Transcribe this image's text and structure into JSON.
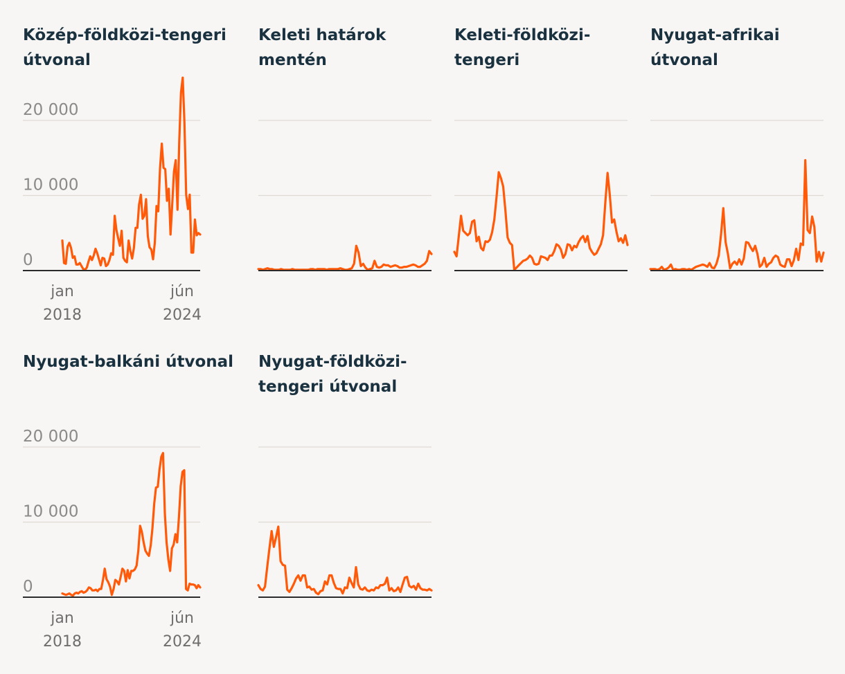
{
  "chart_data": [
    {
      "type": "line",
      "title": "Közép-földközi-tengeri útvonal",
      "title_lines": [
        "Közép-földközi-tengeri",
        "útvonal"
      ],
      "yticks": [
        {
          "value": 0,
          "label": "0"
        },
        {
          "value": 10000,
          "label": "10 000"
        },
        {
          "value": 20000,
          "label": "20 000"
        }
      ],
      "xticks": [
        {
          "label": [
            "jan",
            "2018"
          ],
          "pos": "start"
        },
        {
          "label": [
            "jún",
            "2024"
          ],
          "pos": "end"
        }
      ],
      "ylim": [
        0,
        20000
      ],
      "color": "#ff5a0a",
      "x_start": 0.2,
      "values": [
        4000,
        1000,
        900,
        3200,
        3700,
        3000,
        1700,
        1900,
        800,
        800,
        1000,
        600,
        200,
        100,
        400,
        1200,
        1900,
        1400,
        2000,
        2900,
        2300,
        1500,
        700,
        1700,
        1600,
        600,
        800,
        1400,
        2300,
        2100,
        7300,
        5400,
        4300,
        3300,
        5300,
        1700,
        1300,
        1100,
        4000,
        2600,
        1600,
        3000,
        5700,
        5700,
        8800,
        10100,
        6900,
        7300,
        9500,
        4600,
        3100,
        2800,
        1500,
        3700,
        8600,
        7900,
        13700,
        16900,
        13700,
        13500,
        9300,
        10900,
        4800,
        8900,
        13200,
        14700,
        8100,
        17200,
        23700,
        25700,
        19700,
        10100,
        8200,
        10100,
        2400,
        2400,
        6800,
        4700,
        5000,
        4800
      ]
    },
    {
      "type": "line",
      "title": "Keleti határok mentén",
      "title_lines": [
        "Keleti határok",
        "mentén"
      ],
      "yticks": [],
      "xticks": [],
      "ylim": [
        0,
        20000
      ],
      "color": "#ff5a0a",
      "x_start": 0.0,
      "values": [
        200,
        200,
        100,
        200,
        300,
        200,
        200,
        100,
        100,
        100,
        200,
        100,
        100,
        100,
        100,
        200,
        100,
        100,
        100,
        100,
        100,
        100,
        100,
        200,
        200,
        100,
        200,
        200,
        200,
        200,
        100,
        200,
        200,
        200,
        200,
        200,
        300,
        200,
        100,
        100,
        200,
        300,
        900,
        3300,
        2400,
        600,
        900,
        400,
        100,
        200,
        300,
        1300,
        500,
        400,
        500,
        800,
        700,
        700,
        500,
        600,
        700,
        600,
        400,
        400,
        500,
        500,
        600,
        700,
        800,
        700,
        500,
        500,
        700,
        900,
        1300,
        2600,
        2200
      ]
    },
    {
      "type": "line",
      "title": "Keleti-földközi-tengeri",
      "title_lines": [
        "Keleti-földközi-",
        "tengeri"
      ],
      "yticks": [],
      "xticks": [],
      "ylim": [
        0,
        20000
      ],
      "color": "#ff5a0a",
      "x_start": 0.0,
      "values": [
        2500,
        1900,
        4600,
        7300,
        5300,
        5000,
        4700,
        5000,
        6500,
        6700,
        3900,
        4500,
        3000,
        2700,
        3900,
        3800,
        4100,
        5100,
        6800,
        9800,
        13100,
        12300,
        11200,
        8000,
        4400,
        3700,
        3400,
        100,
        400,
        700,
        1000,
        1300,
        1400,
        1600,
        2000,
        1700,
        900,
        800,
        900,
        1900,
        1800,
        1700,
        1400,
        2000,
        2000,
        2600,
        3500,
        3300,
        2800,
        1700,
        2200,
        3500,
        3400,
        2700,
        3300,
        3100,
        3800,
        4300,
        4600,
        3800,
        4600,
        3000,
        2500,
        2100,
        2300,
        2900,
        3500,
        4700,
        9000,
        13000,
        10100,
        6400,
        6800,
        5200,
        3900,
        4300,
        3700,
        4700,
        3400
      ]
    },
    {
      "type": "line",
      "title": "Nyugat-afrikai útvonal",
      "title_lines": [
        "Nyugat-afrikai",
        "útvonal"
      ],
      "yticks": [],
      "xticks": [],
      "ylim": [
        0,
        20000
      ],
      "color": "#ff5a0a",
      "x_start": 0.0,
      "values": [
        200,
        200,
        200,
        100,
        200,
        500,
        100,
        200,
        400,
        800,
        100,
        200,
        100,
        100,
        200,
        200,
        100,
        200,
        100,
        300,
        500,
        600,
        700,
        800,
        700,
        500,
        1000,
        400,
        300,
        900,
        2000,
        4800,
        8300,
        3800,
        2300,
        300,
        900,
        1200,
        800,
        1500,
        800,
        1600,
        3800,
        3700,
        3100,
        2600,
        3300,
        2200,
        500,
        800,
        1700,
        500,
        900,
        1100,
        1700,
        2000,
        1800,
        800,
        600,
        500,
        1500,
        1500,
        600,
        1400,
        2900,
        1400,
        3600,
        3400,
        14700,
        5400,
        5000,
        7200,
        5800,
        1200,
        2500,
        1200,
        2400
      ]
    },
    {
      "type": "line",
      "title": "Nyugat-balkáni útvonal",
      "title_lines": [
        "Nyugat-balkáni útvonal"
      ],
      "yticks": [
        {
          "value": 0,
          "label": "0"
        },
        {
          "value": 10000,
          "label": "10 000"
        },
        {
          "value": 20000,
          "label": "20 000"
        }
      ],
      "xticks": [
        {
          "label": [
            "jan",
            "2018"
          ],
          "pos": "start"
        },
        {
          "label": [
            "jún",
            "2024"
          ],
          "pos": "end"
        }
      ],
      "ylim": [
        0,
        20000
      ],
      "color": "#ff5a0a",
      "x_start": 0.2,
      "values": [
        500,
        400,
        300,
        400,
        500,
        300,
        200,
        500,
        600,
        500,
        700,
        800,
        600,
        700,
        900,
        1300,
        1200,
        900,
        900,
        1000,
        800,
        1100,
        1100,
        2300,
        3800,
        2400,
        2000,
        1400,
        300,
        1100,
        2300,
        2100,
        1700,
        2700,
        3800,
        3500,
        2100,
        3600,
        2500,
        3500,
        3500,
        3700,
        4200,
        6200,
        9500,
        8700,
        7300,
        6200,
        5800,
        5500,
        6900,
        9200,
        12500,
        14600,
        14700,
        17000,
        18700,
        19200,
        11200,
        7300,
        5000,
        3500,
        6500,
        7000,
        8400,
        7300,
        10700,
        14800,
        16700,
        16900,
        1100,
        900,
        1800,
        1700,
        1700,
        1600,
        1200,
        1600,
        1300
      ]
    },
    {
      "type": "line",
      "title": "Nyugat-földközi-tengeri útvonal",
      "title_lines": [
        "Nyugat-földközi-",
        "tengeri útvonal"
      ],
      "yticks": [],
      "xticks": [],
      "ylim": [
        0,
        20000
      ],
      "color": "#ff5a0a",
      "x_start": 0.0,
      "values": [
        1600,
        1100,
        900,
        1400,
        4000,
        6500,
        8800,
        6700,
        8000,
        9400,
        4800,
        4300,
        4200,
        1000,
        700,
        1200,
        1800,
        2500,
        2900,
        2200,
        2900,
        2900,
        1300,
        1400,
        1000,
        1100,
        600,
        400,
        800,
        900,
        2100,
        1700,
        2900,
        2900,
        1900,
        1200,
        1100,
        1100,
        500,
        1300,
        1200,
        2600,
        1900,
        1300,
        4000,
        1700,
        1100,
        1000,
        1300,
        900,
        800,
        1000,
        900,
        1300,
        1200,
        1600,
        1600,
        1800,
        2600,
        900,
        1200,
        800,
        900,
        1300,
        700,
        1700,
        2600,
        2700,
        1500,
        1300,
        1500,
        1000,
        1800,
        1200,
        1000,
        1000,
        900,
        1100,
        900
      ]
    }
  ]
}
